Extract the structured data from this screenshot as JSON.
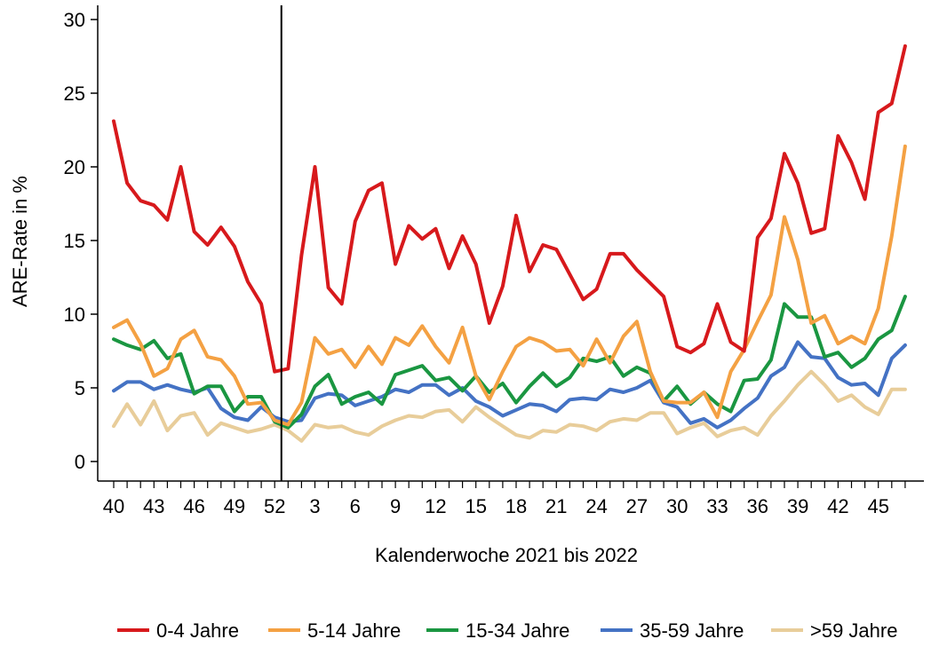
{
  "chart_data": {
    "type": "line",
    "title": "",
    "xlabel": "Kalenderwoche 2021 bis 2022",
    "ylabel": "ARE-Rate in %",
    "ylim": [
      0,
      30
    ],
    "yticks": [
      "0",
      "5",
      "10",
      "15",
      "20",
      "25",
      "30"
    ],
    "xtick_labels": [
      "40",
      "43",
      "46",
      "49",
      "52",
      "3",
      "6",
      "9",
      "12",
      "15",
      "18",
      "21",
      "24",
      "27",
      "30",
      "33",
      "36",
      "39",
      "42",
      "45"
    ],
    "weeks": [
      "40",
      "41",
      "42",
      "43",
      "44",
      "45",
      "46",
      "47",
      "48",
      "49",
      "50",
      "51",
      "52",
      "1",
      "2",
      "3",
      "4",
      "5",
      "6",
      "7",
      "8",
      "9",
      "10",
      "11",
      "12",
      "13",
      "14",
      "15",
      "16",
      "17",
      "18",
      "19",
      "20",
      "21",
      "22",
      "23",
      "24",
      "25",
      "26",
      "27",
      "28",
      "29",
      "30",
      "31",
      "32",
      "33",
      "34",
      "35",
      "36",
      "37",
      "38",
      "39",
      "40",
      "41",
      "42",
      "43",
      "44",
      "45",
      "46",
      "47"
    ],
    "year_break_after_week": "52",
    "grid": false,
    "legend_position": "bottom",
    "series": [
      {
        "name": "0-4 Jahre",
        "color": "#d7191c",
        "values": [
          23.1,
          18.9,
          17.7,
          17.4,
          16.4,
          20.0,
          15.6,
          14.7,
          15.9,
          14.6,
          12.2,
          10.7,
          6.1,
          6.3,
          14.0,
          20.0,
          11.8,
          10.7,
          16.3,
          18.4,
          18.9,
          13.4,
          16.0,
          15.1,
          15.8,
          13.1,
          15.3,
          13.4,
          9.4,
          11.9,
          16.7,
          12.9,
          14.7,
          14.4,
          12.7,
          11.0,
          11.7,
          14.1,
          14.1,
          13.0,
          12.1,
          11.2,
          7.8,
          7.4,
          8.0,
          10.7,
          8.1,
          7.5,
          15.2,
          16.5,
          20.9,
          18.9,
          15.5,
          15.8,
          22.1,
          20.3,
          17.8,
          23.7,
          24.3,
          28.2
        ]
      },
      {
        "name": "5-14 Jahre",
        "color": "#f4a143",
        "values": [
          9.1,
          9.6,
          8.0,
          5.8,
          6.3,
          8.3,
          8.9,
          7.1,
          6.9,
          5.8,
          3.9,
          4.0,
          2.8,
          2.5,
          4.0,
          8.4,
          7.3,
          7.6,
          6.4,
          7.8,
          6.6,
          8.4,
          7.9,
          9.2,
          7.8,
          6.7,
          9.1,
          5.8,
          4.2,
          6.1,
          7.8,
          8.4,
          8.1,
          7.5,
          7.6,
          6.5,
          8.3,
          6.7,
          8.5,
          9.5,
          6.1,
          4.1,
          4.0,
          4.0,
          4.7,
          3.0,
          6.1,
          7.6,
          9.5,
          11.3,
          16.6,
          13.7,
          9.4,
          9.9,
          8.0,
          8.5,
          8.0,
          10.4,
          15.3,
          21.4
        ]
      },
      {
        "name": "15-34 Jahre",
        "color": "#1a9641",
        "values": [
          8.3,
          7.9,
          7.6,
          8.2,
          7.0,
          7.3,
          4.6,
          5.1,
          5.1,
          3.4,
          4.4,
          4.4,
          2.7,
          2.3,
          3.2,
          5.1,
          5.9,
          3.9,
          4.4,
          4.7,
          3.9,
          5.9,
          6.2,
          6.5,
          5.5,
          5.7,
          4.8,
          5.8,
          4.7,
          5.3,
          4.0,
          5.1,
          6.0,
          5.1,
          5.7,
          7.0,
          6.8,
          7.1,
          5.8,
          6.4,
          6.0,
          4.1,
          5.1,
          3.9,
          4.7,
          3.9,
          3.4,
          5.5,
          5.6,
          6.9,
          10.7,
          9.8,
          9.8,
          7.1,
          7.4,
          6.4,
          7.0,
          8.3,
          8.9,
          11.2
        ]
      },
      {
        "name": "35-59 Jahre",
        "color": "#4472c4",
        "values": [
          4.8,
          5.4,
          5.4,
          4.9,
          5.2,
          4.9,
          4.7,
          5.0,
          3.6,
          3.0,
          2.8,
          3.7,
          3.0,
          2.7,
          2.8,
          4.3,
          4.6,
          4.5,
          3.8,
          4.1,
          4.4,
          4.9,
          4.7,
          5.2,
          5.2,
          4.5,
          5.0,
          4.1,
          3.7,
          3.1,
          3.5,
          3.9,
          3.8,
          3.4,
          4.2,
          4.3,
          4.2,
          4.9,
          4.7,
          5.0,
          5.5,
          4.0,
          3.7,
          2.6,
          2.9,
          2.3,
          2.8,
          3.6,
          4.3,
          5.8,
          6.4,
          8.1,
          7.1,
          7.0,
          5.7,
          5.2,
          5.3,
          4.5,
          7.0,
          7.9
        ]
      },
      {
        "name": ">59 Jahre",
        "color": "#e8cd9a",
        "values": [
          2.4,
          3.9,
          2.5,
          4.1,
          2.1,
          3.1,
          3.3,
          1.8,
          2.6,
          2.3,
          2.0,
          2.2,
          2.5,
          2.1,
          1.4,
          2.5,
          2.3,
          2.4,
          2.0,
          1.8,
          2.4,
          2.8,
          3.1,
          3.0,
          3.4,
          3.5,
          2.7,
          3.7,
          3.0,
          2.4,
          1.8,
          1.6,
          2.1,
          2.0,
          2.5,
          2.4,
          2.1,
          2.7,
          2.9,
          2.8,
          3.3,
          3.3,
          1.9,
          2.3,
          2.6,
          1.7,
          2.1,
          2.3,
          1.8,
          3.1,
          4.1,
          5.2,
          6.1,
          5.2,
          4.1,
          4.5,
          3.7,
          3.2,
          4.9,
          4.9
        ]
      }
    ]
  }
}
